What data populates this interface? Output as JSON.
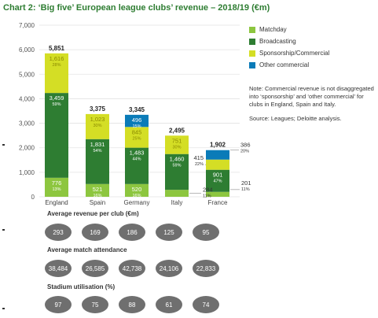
{
  "title": "Chart 2: ‘Big five’ European league clubs’ revenue – 2018/19 (€m)",
  "legend": [
    {
      "name": "Matchday",
      "color": "#8dc63f"
    },
    {
      "name": "Broadcasting",
      "color": "#2e7d32"
    },
    {
      "name": "Sponsorship/Commercial",
      "color": "#d4de25"
    },
    {
      "name": "Other commercial",
      "color": "#0a7bb8"
    }
  ],
  "note": "Note: Commercial revenue is not disaggregated into ‘sponsorship’ and ‘other commercial’ for clubs in England, Spain and Italy.",
  "source": "Source: Leagues; Deloitte analysis.",
  "chart_data": {
    "type": "bar",
    "stacked": true,
    "categories": [
      "England",
      "Spain",
      "Germany",
      "Italy",
      "France"
    ],
    "ylim": [
      0,
      7000
    ],
    "yticks": [
      "7,000",
      "6,000",
      "5,000",
      "4,000",
      "3,000",
      "2,000",
      "1,000",
      "0"
    ],
    "totals": [
      "5,851",
      "3,375",
      "3,345",
      "2,495",
      "1,902"
    ],
    "series": [
      {
        "name": "Matchday",
        "values": [
          776,
          521,
          520,
          284,
          201
        ],
        "labels": [
          "776",
          "521",
          "520",
          "284",
          "201"
        ],
        "pct": [
          "13%",
          "16%",
          "16%",
          "11%",
          "11%"
        ]
      },
      {
        "name": "Broadcasting",
        "values": [
          3459,
          1831,
          1483,
          1460,
          901
        ],
        "labels": [
          "3,459",
          "1,831",
          "1,483",
          "1,460",
          "901"
        ],
        "pct": [
          "59%",
          "54%",
          "44%",
          "59%",
          "47%"
        ]
      },
      {
        "name": "Sponsorship/Commercial",
        "values": [
          1616,
          1023,
          845,
          751,
          415
        ],
        "labels": [
          "1,616",
          "1,023",
          "845",
          "751",
          "415"
        ],
        "pct": [
          "28%",
          "30%",
          "25%",
          "30%",
          "22%"
        ]
      },
      {
        "name": "Other commercial",
        "values": [
          0,
          0,
          496,
          0,
          386
        ],
        "labels": [
          "",
          "",
          "496",
          "",
          "386"
        ],
        "pct": [
          "",
          "",
          "15%",
          "",
          "20%"
        ]
      }
    ]
  },
  "stats": [
    {
      "label": "Average revenue per club (€m)",
      "values": [
        "293",
        "169",
        "186",
        "125",
        "95"
      ]
    },
    {
      "label": "Average match attendance",
      "values": [
        "38,484",
        "26,585",
        "42,738",
        "24,106",
        "22,833"
      ]
    },
    {
      "label": "Stadium utilisation (%)",
      "values": [
        "97",
        "75",
        "88",
        "61",
        "74"
      ]
    }
  ]
}
